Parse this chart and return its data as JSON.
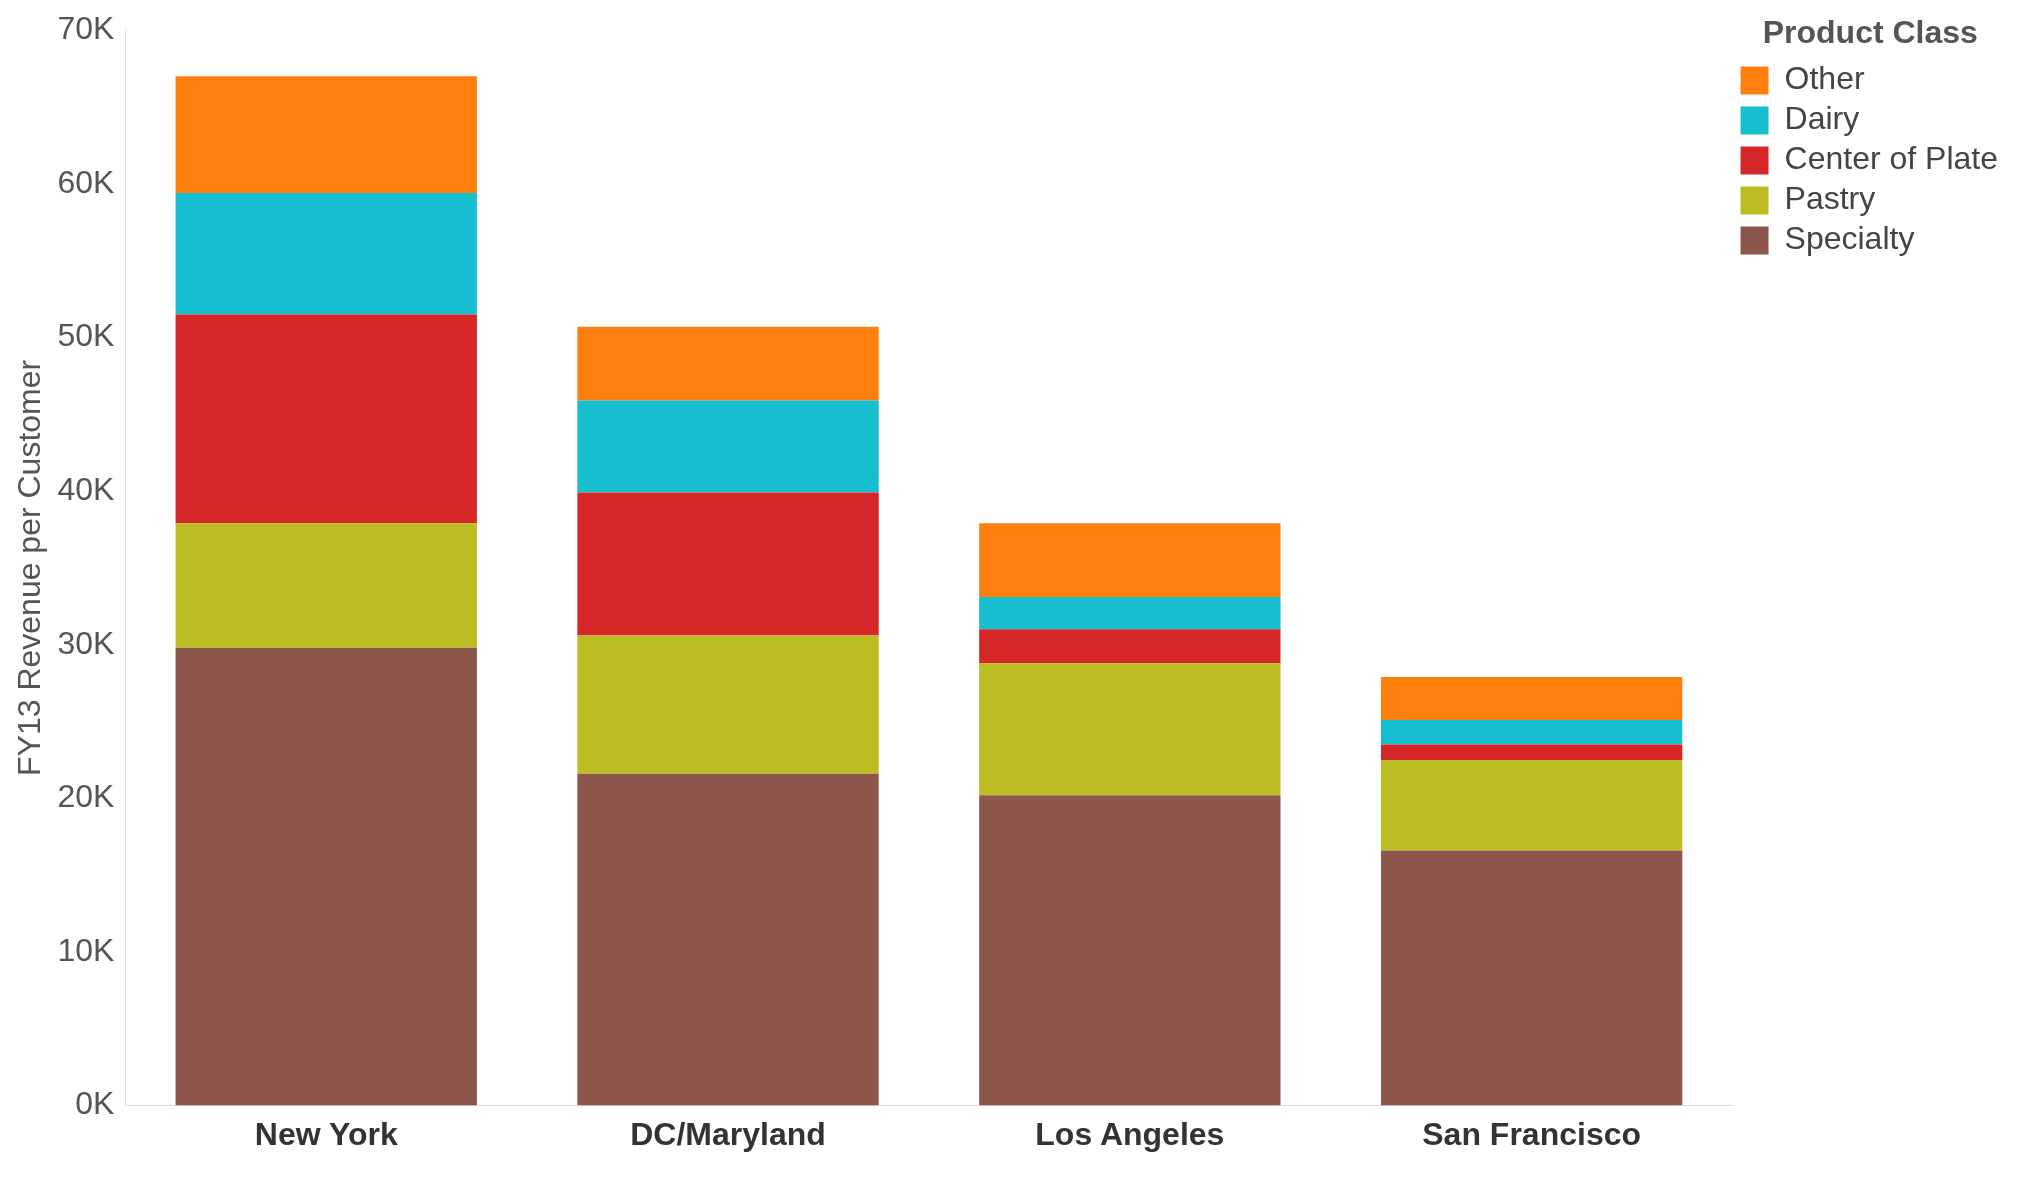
{
  "chart_data": {
    "type": "bar",
    "stacked": true,
    "ylabel": "FY13 Revenue per Customer",
    "legend_title": "Product Class",
    "legend": "top right",
    "grid": false,
    "categories": [
      "New York",
      "DC/Maryland",
      "Los Angeles",
      "San Francisco"
    ],
    "series": [
      {
        "name": "Specialty",
        "color": "#8c564b",
        "values": [
          29800,
          21600,
          20200,
          16600
        ]
      },
      {
        "name": "Pastry",
        "color": "#bcbd22",
        "values": [
          8100,
          9000,
          8600,
          5900
        ]
      },
      {
        "name": "Center of Plate",
        "color": "#d62728",
        "values": [
          13600,
          9300,
          2200,
          1000
        ]
      },
      {
        "name": "Dairy",
        "color": "#17becf",
        "values": [
          7900,
          6000,
          2100,
          1600
        ]
      },
      {
        "name": "Other",
        "color": "#ff7f0e",
        "values": [
          7600,
          4800,
          4800,
          2800
        ]
      }
    ],
    "ylim": [
      0,
      70000
    ],
    "yticks": [
      {
        "value": 0,
        "label": "0K"
      },
      {
        "value": 10000,
        "label": "10K"
      },
      {
        "value": 20000,
        "label": "20K"
      },
      {
        "value": 30000,
        "label": "30K"
      },
      {
        "value": 40000,
        "label": "40K"
      },
      {
        "value": 50000,
        "label": "50K"
      },
      {
        "value": 60000,
        "label": "60K"
      },
      {
        "value": 70000,
        "label": "70K"
      }
    ]
  }
}
